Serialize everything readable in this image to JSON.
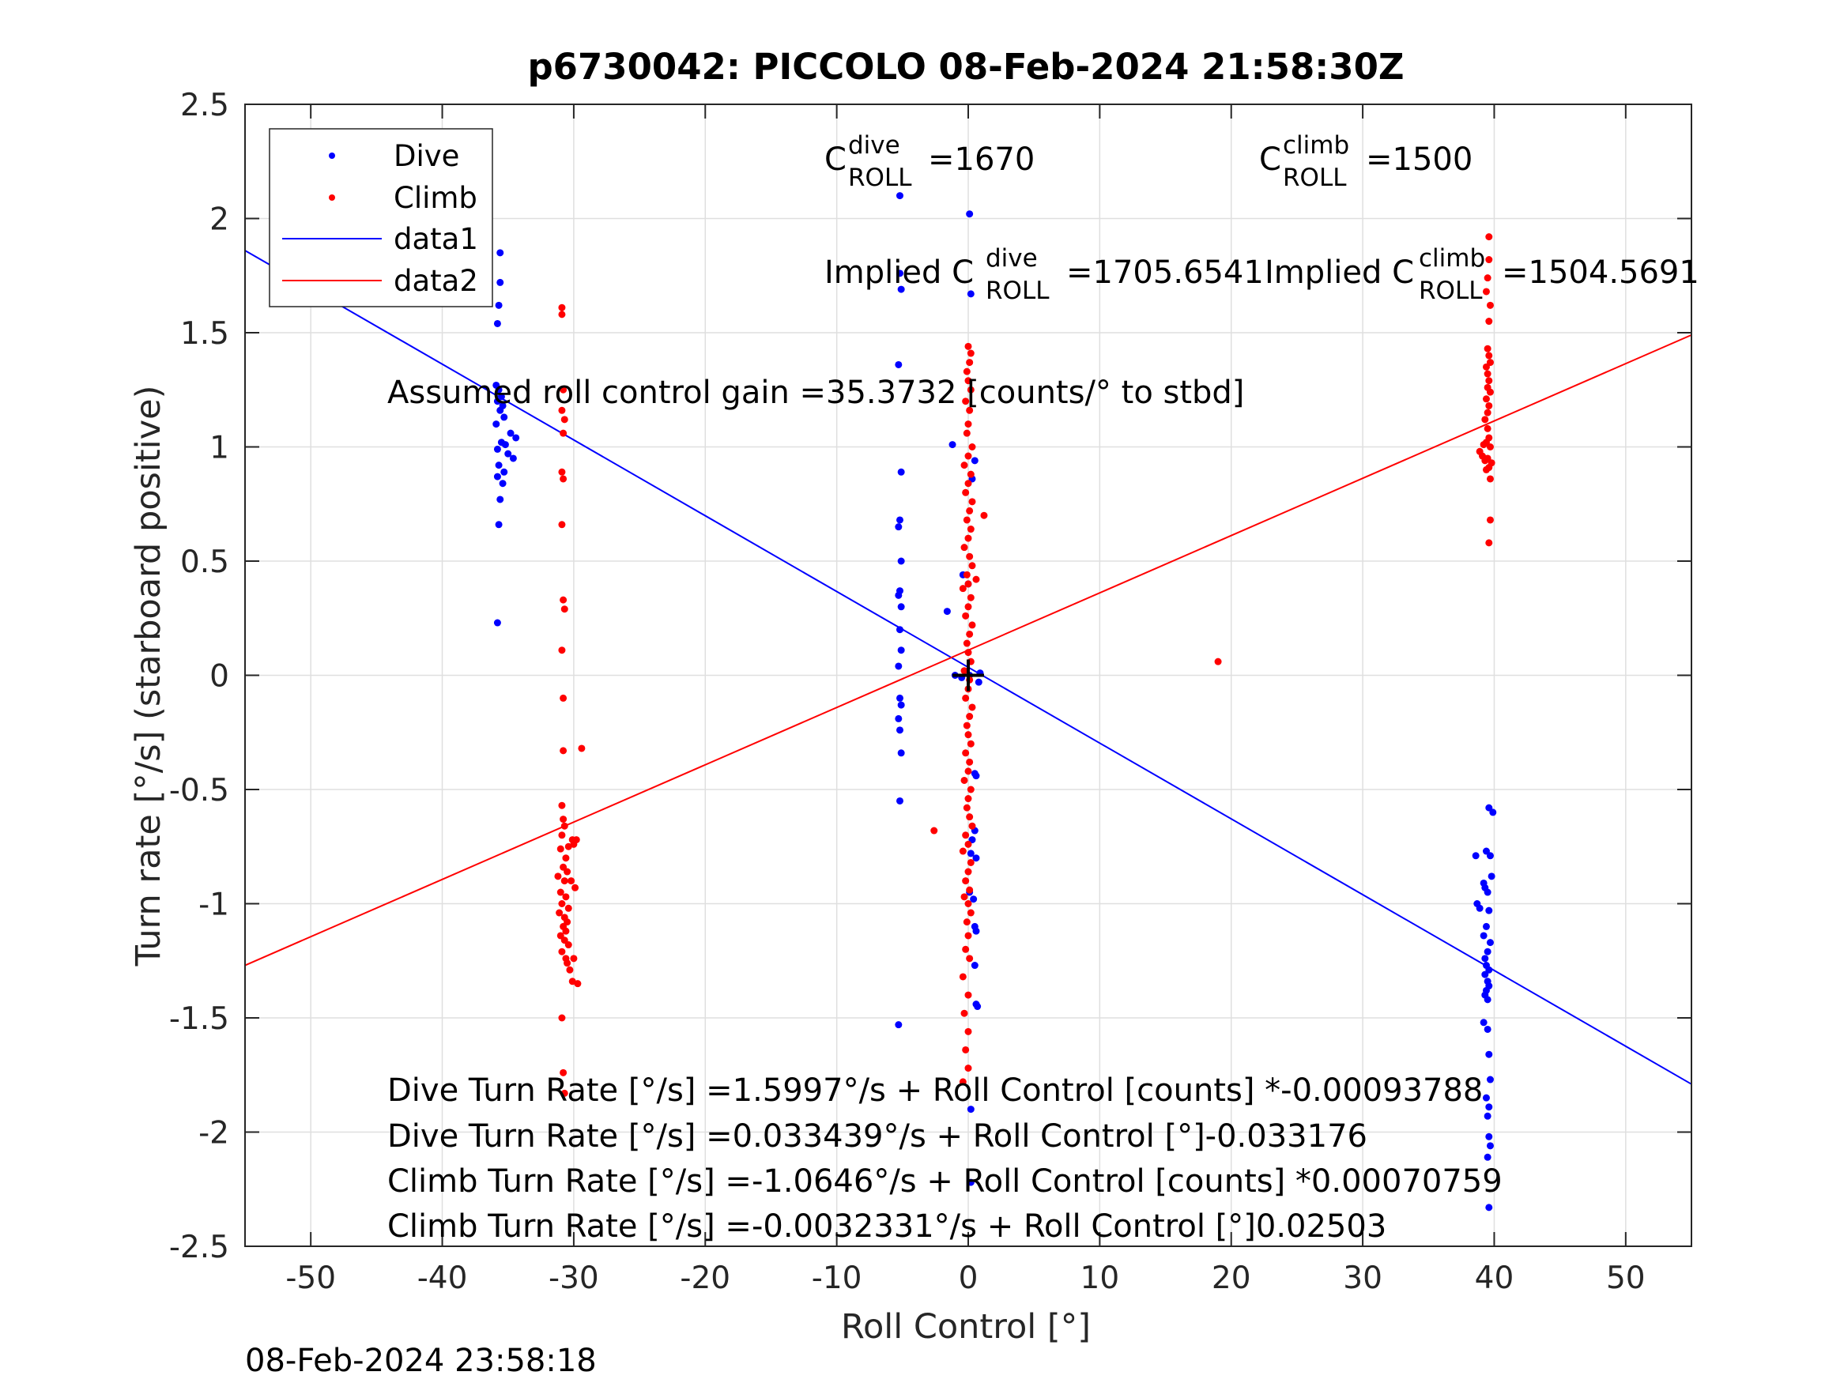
{
  "chart_data": {
    "type": "scatter",
    "title": "p6730042: PICCOLO 08-Feb-2024 21:58:30Z",
    "xlabel": "Roll Control [°]",
    "ylabel": "Turn rate [°/s] (starboard positive)",
    "xlim": [
      -55,
      55
    ],
    "ylim": [
      -2.5,
      2.5
    ],
    "xticks": [
      -50,
      -40,
      -30,
      -20,
      -10,
      0,
      10,
      20,
      30,
      40,
      50
    ],
    "yticks": [
      -2.5,
      -2,
      -1.5,
      -1,
      -0.5,
      0,
      0.5,
      1,
      1.5,
      2,
      2.5
    ],
    "grid": true,
    "legend_position": "top-left",
    "legend": [
      "Dive",
      "Climb",
      "data1",
      "data2"
    ],
    "series": [
      {
        "name": "Dive",
        "kind": "points",
        "color": "#0000ff",
        "points": [
          [
            -35.6,
            1.85
          ],
          [
            -35.6,
            1.72
          ],
          [
            -35.7,
            1.62
          ],
          [
            -35.8,
            1.54
          ],
          [
            -35.9,
            1.27
          ],
          [
            -35.7,
            1.25
          ],
          [
            -35.5,
            1.22
          ],
          [
            -35.8,
            1.2
          ],
          [
            -35.4,
            1.18
          ],
          [
            -35.6,
            1.16
          ],
          [
            -35.3,
            1.13
          ],
          [
            -35.9,
            1.1
          ],
          [
            -34.8,
            1.06
          ],
          [
            -34.4,
            1.04
          ],
          [
            -35.5,
            1.02
          ],
          [
            -35.2,
            1.01
          ],
          [
            -35.8,
            0.99
          ],
          [
            -35.0,
            0.97
          ],
          [
            -34.6,
            0.95
          ],
          [
            -35.7,
            0.92
          ],
          [
            -35.3,
            0.89
          ],
          [
            -35.8,
            0.87
          ],
          [
            -35.4,
            0.84
          ],
          [
            -35.6,
            0.77
          ],
          [
            -35.7,
            0.66
          ],
          [
            -35.8,
            0.23
          ],
          [
            -5.2,
            2.1
          ],
          [
            -5.2,
            1.76
          ],
          [
            -5.1,
            1.69
          ],
          [
            -5.3,
            1.36
          ],
          [
            -5.1,
            0.89
          ],
          [
            -5.2,
            0.68
          ],
          [
            -5.3,
            0.65
          ],
          [
            -5.1,
            0.5
          ],
          [
            -5.2,
            0.37
          ],
          [
            -5.3,
            0.35
          ],
          [
            -5.1,
            0.3
          ],
          [
            -5.2,
            0.2
          ],
          [
            -5.1,
            0.11
          ],
          [
            -5.3,
            0.04
          ],
          [
            -5.2,
            -0.1
          ],
          [
            -5.1,
            -0.13
          ],
          [
            -5.3,
            -0.19
          ],
          [
            -5.2,
            -0.24
          ],
          [
            -5.1,
            -0.34
          ],
          [
            -5.2,
            -0.55
          ],
          [
            -5.3,
            -1.53
          ],
          [
            0.1,
            2.02
          ],
          [
            0.2,
            1.67
          ],
          [
            0.5,
            0.94
          ],
          [
            -1.2,
            1.01
          ],
          [
            -1.6,
            0.28
          ],
          [
            -0.4,
            0.44
          ],
          [
            0.3,
            0.86
          ],
          [
            0.0,
            0.4
          ],
          [
            0.1,
            0.0
          ],
          [
            0.9,
            0.01
          ],
          [
            0.8,
            -0.03
          ],
          [
            0.5,
            -0.43
          ],
          [
            0.6,
            -0.44
          ],
          [
            0.5,
            -0.68
          ],
          [
            0.3,
            -0.72
          ],
          [
            0.2,
            -0.78
          ],
          [
            0.6,
            -0.8
          ],
          [
            0.1,
            -0.95
          ],
          [
            0.4,
            -0.98
          ],
          [
            0.5,
            -1.1
          ],
          [
            0.6,
            -1.12
          ],
          [
            0.5,
            -1.27
          ],
          [
            0.6,
            -1.44
          ],
          [
            0.7,
            -1.45
          ],
          [
            0.2,
            -1.9
          ],
          [
            0.2,
            -2.22
          ],
          [
            -1.0,
            0.0
          ],
          [
            -0.5,
            -0.01
          ],
          [
            39.6,
            -0.58
          ],
          [
            39.9,
            -0.6
          ],
          [
            38.6,
            -0.79
          ],
          [
            39.4,
            -0.77
          ],
          [
            39.7,
            -0.79
          ],
          [
            39.2,
            -0.91
          ],
          [
            39.3,
            -0.93
          ],
          [
            39.8,
            -0.88
          ],
          [
            39.5,
            -0.95
          ],
          [
            38.7,
            -1.0
          ],
          [
            38.9,
            -1.02
          ],
          [
            39.6,
            -1.03
          ],
          [
            39.4,
            -1.1
          ],
          [
            39.2,
            -1.14
          ],
          [
            39.7,
            -1.17
          ],
          [
            39.5,
            -1.21
          ],
          [
            39.3,
            -1.24
          ],
          [
            39.4,
            -1.27
          ],
          [
            39.6,
            -1.29
          ],
          [
            39.3,
            -1.31
          ],
          [
            39.5,
            -1.34
          ],
          [
            39.6,
            -1.36
          ],
          [
            39.4,
            -1.38
          ],
          [
            39.3,
            -1.4
          ],
          [
            39.5,
            -1.42
          ],
          [
            39.2,
            -1.52
          ],
          [
            39.5,
            -1.55
          ],
          [
            39.6,
            -1.66
          ],
          [
            39.7,
            -1.77
          ],
          [
            39.4,
            -1.85
          ],
          [
            39.6,
            -1.89
          ],
          [
            39.5,
            -1.93
          ],
          [
            39.6,
            -2.02
          ],
          [
            39.7,
            -2.06
          ],
          [
            39.5,
            -2.11
          ],
          [
            39.6,
            -2.33
          ]
        ]
      },
      {
        "name": "Climb",
        "kind": "points",
        "color": "#ff0000",
        "points": [
          [
            -30.9,
            1.61
          ],
          [
            -30.9,
            1.58
          ],
          [
            -30.8,
            1.25
          ],
          [
            -30.9,
            1.16
          ],
          [
            -30.7,
            1.12
          ],
          [
            -30.8,
            1.06
          ],
          [
            -30.9,
            0.89
          ],
          [
            -30.8,
            0.86
          ],
          [
            -30.9,
            0.66
          ],
          [
            -30.8,
            0.33
          ],
          [
            -30.7,
            0.29
          ],
          [
            -30.9,
            0.11
          ],
          [
            -30.8,
            -0.1
          ],
          [
            -30.8,
            -0.33
          ],
          [
            -29.4,
            -0.32
          ],
          [
            -30.9,
            -0.57
          ],
          [
            -30.8,
            -0.63
          ],
          [
            -30.7,
            -0.66
          ],
          [
            -30.9,
            -0.7
          ],
          [
            -30.1,
            -0.72
          ],
          [
            -29.8,
            -0.72
          ],
          [
            -30.4,
            -0.75
          ],
          [
            -30.0,
            -0.74
          ],
          [
            -31.0,
            -0.76
          ],
          [
            -30.6,
            -0.8
          ],
          [
            -30.8,
            -0.84
          ],
          [
            -30.5,
            -0.86
          ],
          [
            -31.2,
            -0.88
          ],
          [
            -30.7,
            -0.9
          ],
          [
            -30.2,
            -0.9
          ],
          [
            -29.9,
            -0.93
          ],
          [
            -31.0,
            -0.95
          ],
          [
            -30.6,
            -0.97
          ],
          [
            -30.9,
            -1.0
          ],
          [
            -30.4,
            -1.02
          ],
          [
            -31.1,
            -1.04
          ],
          [
            -30.7,
            -1.06
          ],
          [
            -30.5,
            -1.08
          ],
          [
            -30.8,
            -1.1
          ],
          [
            -30.6,
            -1.12
          ],
          [
            -31.0,
            -1.14
          ],
          [
            -30.7,
            -1.16
          ],
          [
            -30.4,
            -1.18
          ],
          [
            -30.9,
            -1.21
          ],
          [
            -30.6,
            -1.24
          ],
          [
            -30.5,
            -1.26
          ],
          [
            -30.0,
            -1.24
          ],
          [
            -30.3,
            -1.29
          ],
          [
            -30.1,
            -1.34
          ],
          [
            -29.7,
            -1.35
          ],
          [
            -30.9,
            -1.5
          ],
          [
            -30.8,
            -1.74
          ],
          [
            -30.7,
            -1.83
          ],
          [
            19.0,
            0.06
          ],
          [
            -2.6,
            -0.68
          ],
          [
            0.0,
            1.44
          ],
          [
            0.2,
            1.41
          ],
          [
            0.1,
            1.37
          ],
          [
            -0.1,
            1.33
          ],
          [
            0.0,
            1.29
          ],
          [
            0.2,
            1.25
          ],
          [
            -0.2,
            1.2
          ],
          [
            0.1,
            1.16
          ],
          [
            0.0,
            1.1
          ],
          [
            -0.1,
            1.06
          ],
          [
            0.3,
            1.0
          ],
          [
            0.0,
            0.96
          ],
          [
            -0.3,
            0.92
          ],
          [
            0.2,
            0.88
          ],
          [
            0.0,
            0.84
          ],
          [
            -0.2,
            0.8
          ],
          [
            0.3,
            0.76
          ],
          [
            0.1,
            0.72
          ],
          [
            -0.1,
            0.68
          ],
          [
            1.2,
            0.7
          ],
          [
            0.2,
            0.64
          ],
          [
            0.0,
            0.6
          ],
          [
            -0.3,
            0.56
          ],
          [
            0.1,
            0.52
          ],
          [
            0.3,
            0.48
          ],
          [
            -0.1,
            0.44
          ],
          [
            0.0,
            0.4
          ],
          [
            0.6,
            0.42
          ],
          [
            -0.4,
            0.38
          ],
          [
            0.2,
            0.34
          ],
          [
            0.0,
            0.3
          ],
          [
            -0.2,
            0.26
          ],
          [
            0.3,
            0.22
          ],
          [
            0.1,
            0.18
          ],
          [
            -0.1,
            0.14
          ],
          [
            0.0,
            0.1
          ],
          [
            0.2,
            0.06
          ],
          [
            -0.3,
            0.02
          ],
          [
            0.1,
            -0.02
          ],
          [
            0.0,
            -0.06
          ],
          [
            -0.2,
            -0.1
          ],
          [
            0.3,
            -0.14
          ],
          [
            0.1,
            -0.18
          ],
          [
            -0.1,
            -0.22
          ],
          [
            0.0,
            -0.26
          ],
          [
            0.2,
            -0.3
          ],
          [
            -0.2,
            -0.34
          ],
          [
            0.1,
            -0.38
          ],
          [
            0.0,
            -0.42
          ],
          [
            -0.3,
            -0.46
          ],
          [
            0.2,
            -0.5
          ],
          [
            0.0,
            -0.54
          ],
          [
            -0.1,
            -0.58
          ],
          [
            0.1,
            -0.62
          ],
          [
            0.3,
            -0.66
          ],
          [
            -0.2,
            -0.7
          ],
          [
            0.0,
            -0.74
          ],
          [
            -0.4,
            -0.77
          ],
          [
            0.2,
            -0.82
          ],
          [
            0.0,
            -0.86
          ],
          [
            -0.2,
            -0.9
          ],
          [
            0.1,
            -0.94
          ],
          [
            -0.3,
            -0.97
          ],
          [
            0.0,
            -1.0
          ],
          [
            0.2,
            -1.04
          ],
          [
            -0.1,
            -1.08
          ],
          [
            0.0,
            -1.14
          ],
          [
            -0.2,
            -1.2
          ],
          [
            0.1,
            -1.24
          ],
          [
            -0.4,
            -1.32
          ],
          [
            0.0,
            -1.4
          ],
          [
            -0.3,
            -1.48
          ],
          [
            0.0,
            -1.56
          ],
          [
            -0.2,
            -1.64
          ],
          [
            0.0,
            -1.72
          ],
          [
            -0.4,
            -1.78
          ],
          [
            39.6,
            1.92
          ],
          [
            39.6,
            1.82
          ],
          [
            39.5,
            1.74
          ],
          [
            39.4,
            1.68
          ],
          [
            39.7,
            1.62
          ],
          [
            39.6,
            1.55
          ],
          [
            39.5,
            1.43
          ],
          [
            39.6,
            1.4
          ],
          [
            39.7,
            1.37
          ],
          [
            39.4,
            1.35
          ],
          [
            39.5,
            1.32
          ],
          [
            39.6,
            1.29
          ],
          [
            39.5,
            1.26
          ],
          [
            39.7,
            1.24
          ],
          [
            39.4,
            1.21
          ],
          [
            39.6,
            1.18
          ],
          [
            39.5,
            1.15
          ],
          [
            39.3,
            1.12
          ],
          [
            39.5,
            1.08
          ],
          [
            39.6,
            1.04
          ],
          [
            39.4,
            1.02
          ],
          [
            39.2,
            1.01
          ],
          [
            39.7,
            1.0
          ],
          [
            38.9,
            0.98
          ],
          [
            39.1,
            0.96
          ],
          [
            39.5,
            0.95
          ],
          [
            39.3,
            0.94
          ],
          [
            39.8,
            0.93
          ],
          [
            39.6,
            0.91
          ],
          [
            39.4,
            0.9
          ],
          [
            39.7,
            0.86
          ],
          [
            39.7,
            0.68
          ],
          [
            39.6,
            0.58
          ]
        ]
      },
      {
        "name": "data1",
        "kind": "line",
        "color": "#0000ff",
        "points": [
          [
            -55,
            1.86
          ],
          [
            55,
            -1.79
          ]
        ]
      },
      {
        "name": "data2",
        "kind": "line",
        "color": "#ff0000",
        "points": [
          [
            -55,
            -1.27
          ],
          [
            55,
            1.49
          ]
        ]
      }
    ],
    "origin_marker": [
      0,
      0
    ],
    "annotations": {
      "c_dive": {
        "base": "C",
        "sup": "dive",
        "sub": "ROLL",
        "value": "=1670"
      },
      "c_climb": {
        "base": "C",
        "sup": "climb",
        "sub": "ROLL",
        "value": "=1500"
      },
      "implied_dive": {
        "prefix": "Implied C",
        "sup": "dive",
        "sub": "ROLL",
        "value": "=1705.6541"
      },
      "implied_climb": {
        "prefix": "Implied C",
        "sup": "climb",
        "sub": "ROLL",
        "value": "=1504.5691"
      },
      "gain": "Assumed roll control gain =35.3732 [counts/° to stbd]",
      "fit_lines": [
        "Dive Turn Rate [°/s] =1.5997°/s + Roll Control [counts] *-0.00093788",
        "Dive Turn Rate [°/s] =0.033439°/s + Roll Control [°]-0.033176",
        "Climb Turn Rate [°/s] =-1.0646°/s + Roll Control [counts] *0.00070759",
        "Climb Turn Rate [°/s] =-0.0032331°/s + Roll Control [°]0.02503"
      ]
    },
    "footer_timestamp": "08-Feb-2024 23:58:18"
  }
}
